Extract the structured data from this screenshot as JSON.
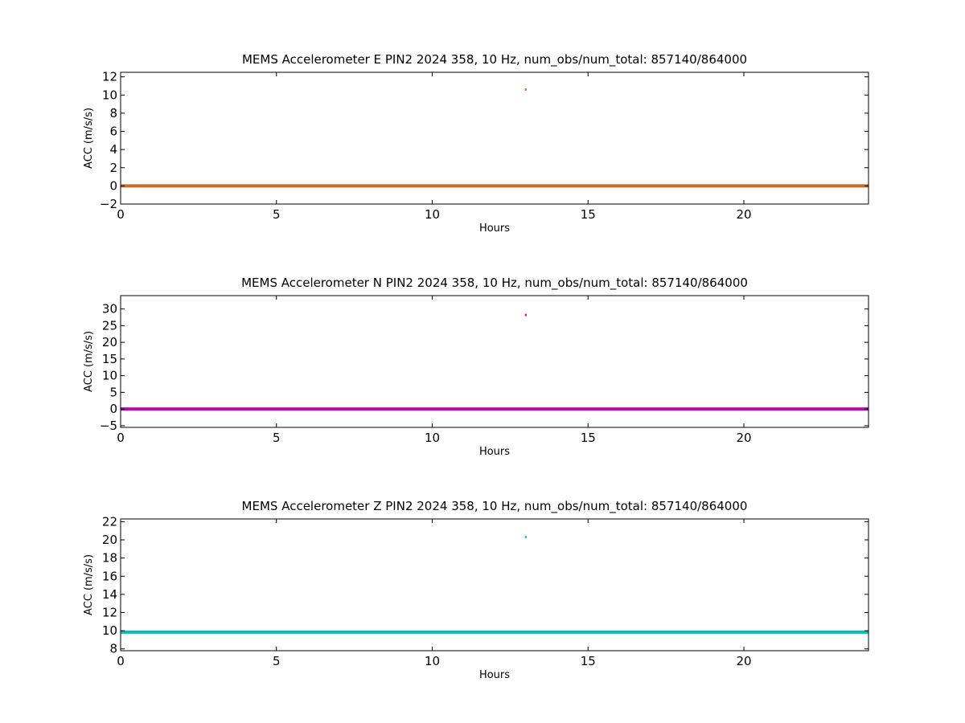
{
  "chart_data": [
    {
      "type": "scatter",
      "title": "MEMS Accelerometer E PIN2 2024 358, 10 Hz, num_obs/num_total: 857140/864000",
      "xlabel": "Hours",
      "ylabel": "ACC (m/s/s)",
      "xlim": [
        0,
        24
      ],
      "ylim": [
        -2,
        12.5
      ],
      "xticks": [
        "0",
        "5",
        "10",
        "15",
        "20"
      ],
      "yticks": [
        "−2",
        "0",
        "2",
        "4",
        "6",
        "8",
        "10",
        "12"
      ],
      "grid": false,
      "color": "#d2691e",
      "series": [
        {
          "baseline_value": 0.0,
          "x_range": [
            0,
            24
          ],
          "spike": {
            "x": 13.0,
            "y": 10.6
          }
        }
      ]
    },
    {
      "type": "scatter",
      "title": "MEMS Accelerometer N PIN2 2024 358, 10 Hz, num_obs/num_total: 857140/864000",
      "xlabel": "Hours",
      "ylabel": "ACC (m/s/s)",
      "xlim": [
        0,
        24
      ],
      "ylim": [
        -5.5,
        34
      ],
      "xticks": [
        "0",
        "5",
        "10",
        "15",
        "20"
      ],
      "yticks": [
        "−5",
        "0",
        "5",
        "10",
        "15",
        "20",
        "25",
        "30"
      ],
      "grid": false,
      "color": "#bf00bf",
      "series": [
        {
          "baseline_value": 0.0,
          "x_range": [
            0,
            24
          ],
          "spike": {
            "x": 13.0,
            "y": 28.2
          }
        }
      ]
    },
    {
      "type": "scatter",
      "title": "MEMS Accelerometer Z PIN2 2024 358, 10 Hz, num_obs/num_total: 857140/864000",
      "xlabel": "Hours",
      "ylabel": "ACC (m/s/s)",
      "xlim": [
        0,
        24
      ],
      "ylim": [
        7.8,
        22.3
      ],
      "xticks": [
        "0",
        "5",
        "10",
        "15",
        "20"
      ],
      "yticks": [
        "8",
        "10",
        "12",
        "14",
        "16",
        "18",
        "20",
        "22"
      ],
      "grid": false,
      "color": "#00bfbf",
      "series": [
        {
          "baseline_value": 9.85,
          "x_range": [
            0,
            24
          ],
          "spike": {
            "x": 13.0,
            "y": 20.3
          }
        }
      ]
    }
  ]
}
